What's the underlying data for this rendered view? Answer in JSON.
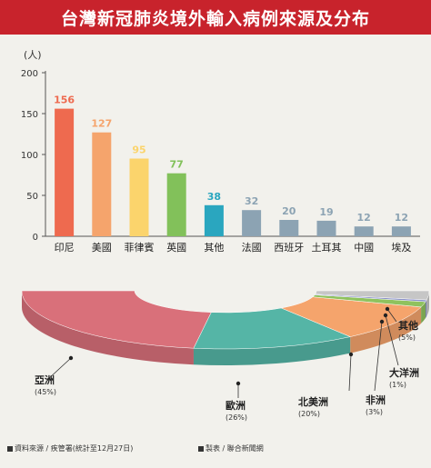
{
  "title": "台灣新冠肺炎境外輸入病例來源及分布",
  "chart_data": [
    {
      "type": "bar",
      "title": "",
      "ylabel": "(人)",
      "xlabel": "",
      "ylim": [
        0,
        200
      ],
      "yticks": [
        0,
        50,
        100,
        150,
        200
      ],
      "grid": false,
      "categories": [
        "印尼",
        "美國",
        "菲律賓",
        "英國",
        "其他",
        "法國",
        "西班牙",
        "土耳其",
        "中國",
        "埃及"
      ],
      "values": [
        156,
        127,
        95,
        77,
        38,
        32,
        20,
        19,
        12,
        12
      ],
      "colors": [
        "#ee6a4f",
        "#f5a46c",
        "#fbd46c",
        "#82c15a",
        "#2aa6bf",
        "#8ca3b3",
        "#8ca3b3",
        "#8ca3b3",
        "#8ca3b3",
        "#8ca3b3"
      ],
      "label_colors": [
        "#ee6a4f",
        "#f5a46c",
        "#fbd46c",
        "#82c15a",
        "#2aa6bf",
        "#8ca3b3",
        "#8ca3b3",
        "#8ca3b3",
        "#8ca3b3",
        "#8ca3b3"
      ]
    },
    {
      "type": "pie",
      "style": "3d-half-donut",
      "slices": [
        {
          "name": "亞洲",
          "value": 45,
          "label": "(45%)",
          "color": "#d9707a"
        },
        {
          "name": "歐洲",
          "value": 26,
          "label": "(26%)",
          "color": "#55b5a6"
        },
        {
          "name": "北美洲",
          "value": 20,
          "label": "(20%)",
          "color": "#f5a46c"
        },
        {
          "name": "非洲",
          "value": 3,
          "label": "(3%)",
          "color": "#8fc25e"
        },
        {
          "name": "大洋洲",
          "value": 1,
          "label": "(1%)",
          "color": "#8a90c8"
        },
        {
          "name": "其他",
          "value": 5,
          "label": "(5%)",
          "color": "#c6c6c6"
        }
      ]
    }
  ],
  "footer": {
    "source": "資料來源 / 疾管署(統計至12月27日)",
    "credit": "製表 / 聯合新聞網"
  }
}
